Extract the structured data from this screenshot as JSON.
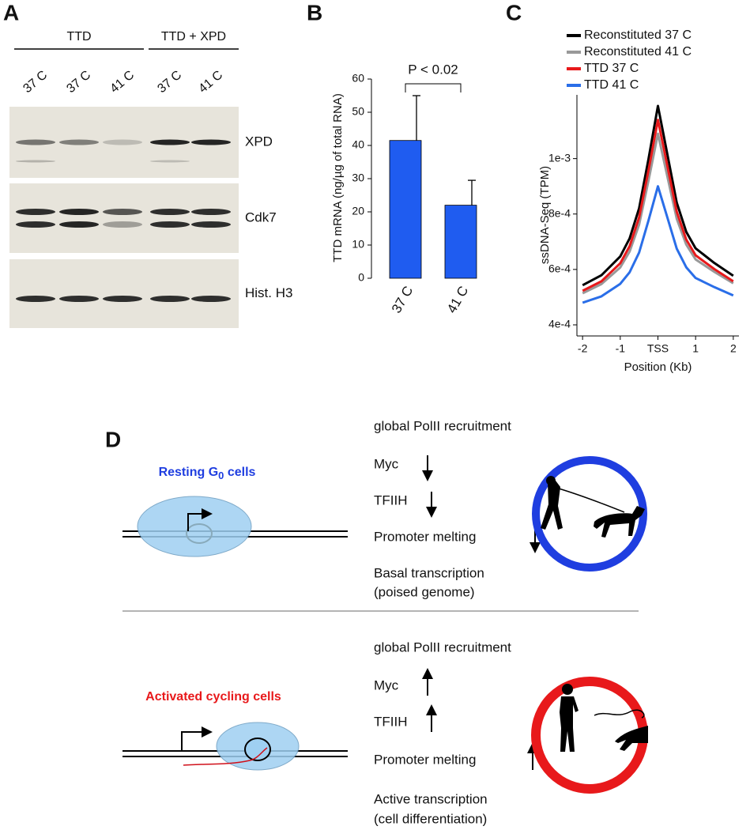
{
  "panel_a": {
    "letter": "A",
    "groups": [
      "TTD",
      "TTD + XPD"
    ],
    "lanes": [
      "37 C",
      "37 C",
      "41 C",
      "37 C",
      "41 C"
    ],
    "blots": [
      "XPD",
      "Cdk7",
      "Hist. H3"
    ]
  },
  "chart_data": [
    {
      "type": "bar",
      "letter": "B",
      "y_label": "TTD mRNA (ng/µg of total RNA)",
      "categories": [
        "37 C",
        "41 C"
      ],
      "values": [
        41.5,
        22
      ],
      "errors": [
        13.5,
        7.5
      ],
      "color": "#1f5cf0",
      "ylim": [
        0,
        60
      ],
      "yticks": [
        0,
        10,
        20,
        30,
        40,
        50,
        60
      ],
      "annotation": "P < 0.02"
    },
    {
      "type": "line",
      "letter": "C",
      "x_label": "Position (Kb)",
      "y_label": "ssDNA-Seq (TPM)",
      "x": [
        -2,
        -1.5,
        -1,
        -0.75,
        -0.5,
        -0.25,
        0,
        0.25,
        0.5,
        0.75,
        1,
        1.5,
        2
      ],
      "series": [
        {
          "name": "Reconstituted 37 C",
          "color": "#000000",
          "values": [
            0.000543,
            0.000579,
            0.000647,
            0.000712,
            0.000821,
            0.000999,
            0.00119,
            0.001016,
            0.000841,
            0.000736,
            0.000676,
            0.000623,
            0.000577
          ]
        },
        {
          "name": "Reconstituted 41 C",
          "color": "#999999",
          "values": [
            0.000514,
            0.000547,
            0.000607,
            0.000665,
            0.000762,
            0.000921,
            0.00109,
            0.000936,
            0.000783,
            0.00069,
            0.000636,
            0.000591,
            0.00055
          ]
        },
        {
          "name": "TTD 37 C",
          "color": "#e8191b",
          "values": [
            0.000523,
            0.000557,
            0.000622,
            0.000684,
            0.000788,
            0.000958,
            0.00114,
            0.000974,
            0.000808,
            0.000708,
            0.000651,
            0.000601,
            0.000557
          ]
        },
        {
          "name": "TTD 41 C",
          "color": "#2a6ee8",
          "values": [
            0.00048,
            0.000503,
            0.000548,
            0.00059,
            0.000661,
            0.000777,
            0.0009,
            0.000788,
            0.000675,
            0.000608,
            0.000569,
            0.000536,
            0.000506
          ]
        }
      ],
      "xlim": [
        -2.15,
        2.15
      ],
      "ylim": [
        0.00036,
        0.00123
      ],
      "xticks": [
        -2,
        -1,
        {
          "value": 0,
          "label": "TSS"
        },
        1,
        2
      ],
      "yticks": [
        {
          "value": 0.0004,
          "label": "4e-4"
        },
        {
          "value": 0.0006,
          "label": "6e-4"
        },
        {
          "value": 0.0008,
          "label": "8e-4"
        },
        {
          "value": 0.001,
          "label": "1e-3"
        }
      ]
    }
  ],
  "panel_d": {
    "letter": "D",
    "states": [
      {
        "label": [
          "Resting G",
          "0",
          " cells"
        ],
        "steps": [
          "global PolII recruitment",
          "Myc",
          "TFIIH",
          "Promoter melting",
          "Basal transcription",
          "(poised genome)"
        ]
      },
      {
        "label": [
          "Activated cycling cells"
        ],
        "steps": [
          "global PolII recruitment",
          "Myc",
          "TFIIH",
          "Promoter melting",
          "Active transcription",
          "(cell differentiation)"
        ]
      }
    ]
  }
}
